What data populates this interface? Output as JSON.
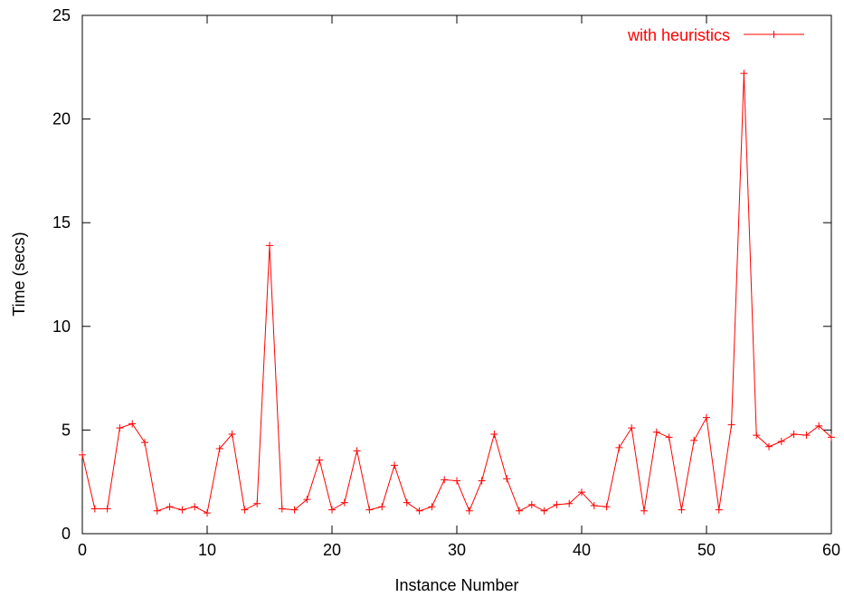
{
  "chart_data": {
    "type": "line",
    "xlabel": "Instance Number",
    "ylabel": "Time (secs)",
    "xlim": [
      0,
      60
    ],
    "ylim": [
      0,
      25
    ],
    "xticks": [
      0,
      10,
      20,
      30,
      40,
      50,
      60
    ],
    "yticks": [
      0,
      5,
      10,
      15,
      20,
      25
    ],
    "grid": false,
    "legend_position": "top-right",
    "series": [
      {
        "name": "with heuristics",
        "color": "#ff0000",
        "marker": "plus",
        "x": [
          0,
          1,
          2,
          3,
          4,
          5,
          6,
          7,
          8,
          9,
          10,
          11,
          12,
          13,
          14,
          15,
          16,
          17,
          18,
          19,
          20,
          21,
          22,
          23,
          24,
          25,
          26,
          27,
          28,
          29,
          30,
          31,
          32,
          33,
          34,
          35,
          36,
          37,
          38,
          39,
          40,
          41,
          42,
          43,
          44,
          45,
          46,
          47,
          48,
          49,
          50,
          51,
          52,
          53,
          54,
          55,
          56,
          57,
          58,
          59,
          60
        ],
        "y": [
          3.8,
          1.2,
          1.2,
          5.1,
          5.3,
          4.4,
          1.1,
          1.3,
          1.15,
          1.3,
          1.0,
          4.1,
          4.8,
          1.15,
          1.45,
          13.9,
          1.2,
          1.15,
          1.65,
          3.55,
          1.15,
          1.5,
          4.0,
          1.15,
          1.3,
          3.3,
          1.5,
          1.1,
          1.3,
          2.6,
          2.55,
          1.1,
          2.55,
          4.8,
          2.65,
          1.1,
          1.4,
          1.1,
          1.4,
          1.45,
          2.0,
          1.35,
          1.3,
          4.15,
          5.1,
          1.1,
          4.9,
          4.65,
          1.15,
          4.5,
          5.6,
          1.15,
          5.25,
          22.2,
          4.75,
          4.2,
          4.45,
          4.8,
          4.75,
          5.2,
          4.65
        ]
      }
    ]
  }
}
